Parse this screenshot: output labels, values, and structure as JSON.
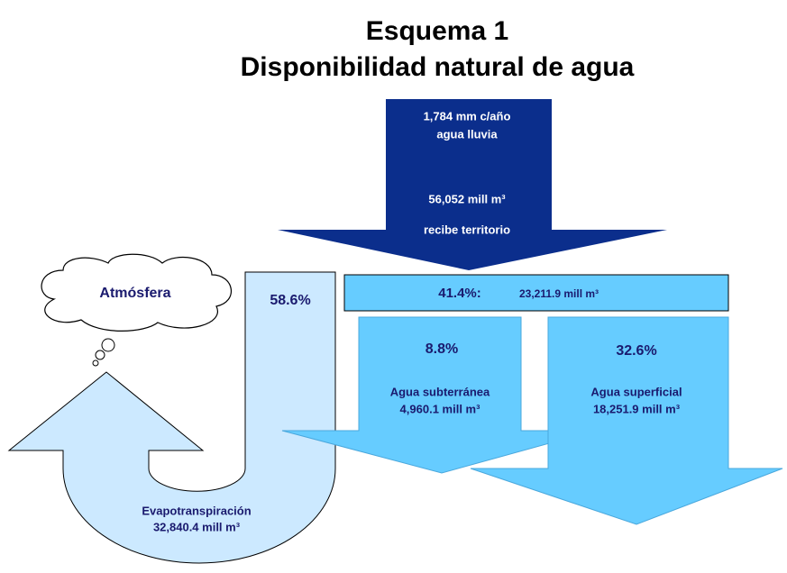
{
  "header": {
    "title": "Esquema 1",
    "subtitle": "Disponibilidad natural de agua"
  },
  "nodes": [
    {
      "label": "1,784 mm c/año",
      "label2": "agua lluvia",
      "label3": "56,052 mill m³",
      "label4": "recibe territorio"
    },
    {
      "label": "Atmósfera"
    },
    {
      "label": "58.6%"
    },
    {
      "label": "41.4%:",
      "label2": "23,211.9 mill m³"
    },
    {
      "label": "8.8%",
      "label2": "Agua subterránea",
      "label3": "4,960.1 mill m³"
    },
    {
      "label": "32.6%",
      "label2": "Agua superficial",
      "label3": "18,251.9 mill m³"
    },
    {
      "label": "Evapotranspiración",
      "label2": "32,840.4 mill m³"
    }
  ]
}
